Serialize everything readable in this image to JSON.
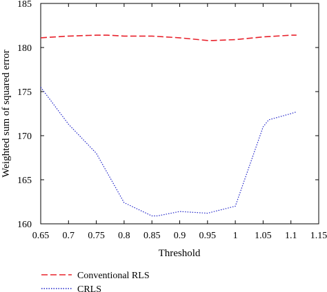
{
  "chart_data": {
    "type": "line",
    "title": "",
    "xlabel": "Threshold",
    "ylabel": "Weighted sum of squared error",
    "xlim": [
      0.65,
      1.15
    ],
    "ylim": [
      160,
      185
    ],
    "x_ticks": [
      0.65,
      0.7,
      0.75,
      0.8,
      0.85,
      0.9,
      0.95,
      1,
      1.05,
      1.1,
      1.15
    ],
    "x_tick_labels": [
      "0.65",
      "0.7",
      "0.75",
      "0.8",
      "0.85",
      "0.9",
      "0.95",
      "1",
      "1.05",
      "1.1",
      "1.15"
    ],
    "y_ticks": [
      160,
      165,
      170,
      175,
      180,
      185
    ],
    "y_tick_labels": [
      "160",
      "165",
      "170",
      "175",
      "180",
      "185"
    ],
    "grid": false,
    "legend_position": "bottom-left, below plot",
    "series": [
      {
        "name": "Conventional RLS",
        "color": "#e8202a",
        "dash": "dashed",
        "x": [
          0.65,
          0.7,
          0.75,
          0.77,
          0.8,
          0.85,
          0.9,
          0.95,
          0.96,
          1.0,
          1.05,
          1.1,
          1.11
        ],
        "y": [
          181.1,
          181.3,
          181.4,
          181.4,
          181.3,
          181.3,
          181.1,
          180.8,
          180.8,
          180.9,
          181.2,
          181.4,
          181.4
        ]
      },
      {
        "name": "CRLS",
        "color": "#1e22c8",
        "dash": "dotted",
        "x": [
          0.65,
          0.7,
          0.75,
          0.8,
          0.85,
          0.86,
          0.9,
          0.95,
          1.0,
          1.05,
          1.06,
          1.1,
          1.11
        ],
        "y": [
          175.5,
          171.3,
          168.0,
          162.4,
          160.9,
          160.9,
          161.4,
          161.2,
          162.0,
          171.0,
          171.8,
          172.5,
          172.7
        ]
      }
    ]
  }
}
